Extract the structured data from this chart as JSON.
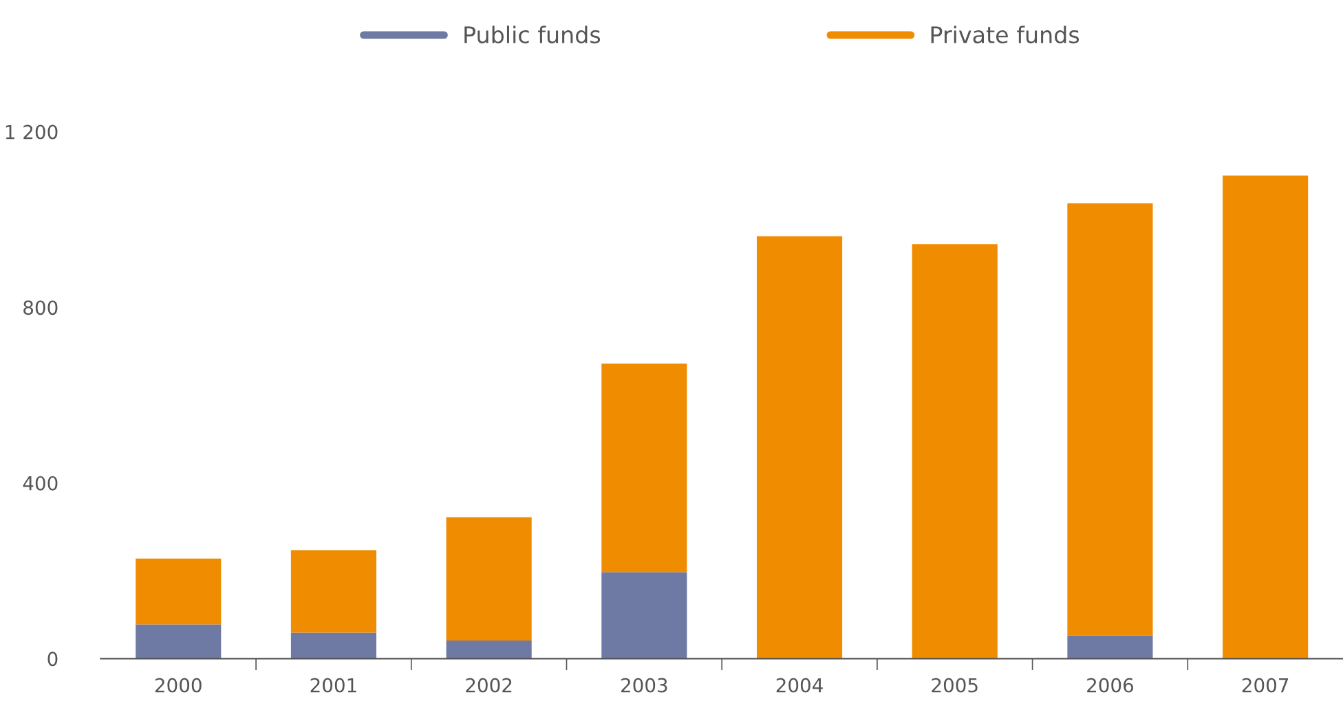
{
  "chart_data": {
    "type": "bar",
    "stacked": true,
    "categories": [
      "2000",
      "2001",
      "2002",
      "2003",
      "2004",
      "2005",
      "2006",
      "2007"
    ],
    "series": [
      {
        "name": "Public funds",
        "color": "#6e7aa3",
        "values": [
          78,
          59,
          41,
          197,
          0,
          0,
          53,
          0
        ]
      },
      {
        "name": "Private funds",
        "color": "#f08c00",
        "values": [
          150,
          188,
          281,
          475,
          962,
          944,
          984,
          1100
        ]
      }
    ],
    "ylim": [
      0,
      1200
    ],
    "yticks": [
      0,
      400,
      800,
      {
        "value": 1200,
        "label": "1 200"
      }
    ],
    "grid": false,
    "legend": "top"
  }
}
